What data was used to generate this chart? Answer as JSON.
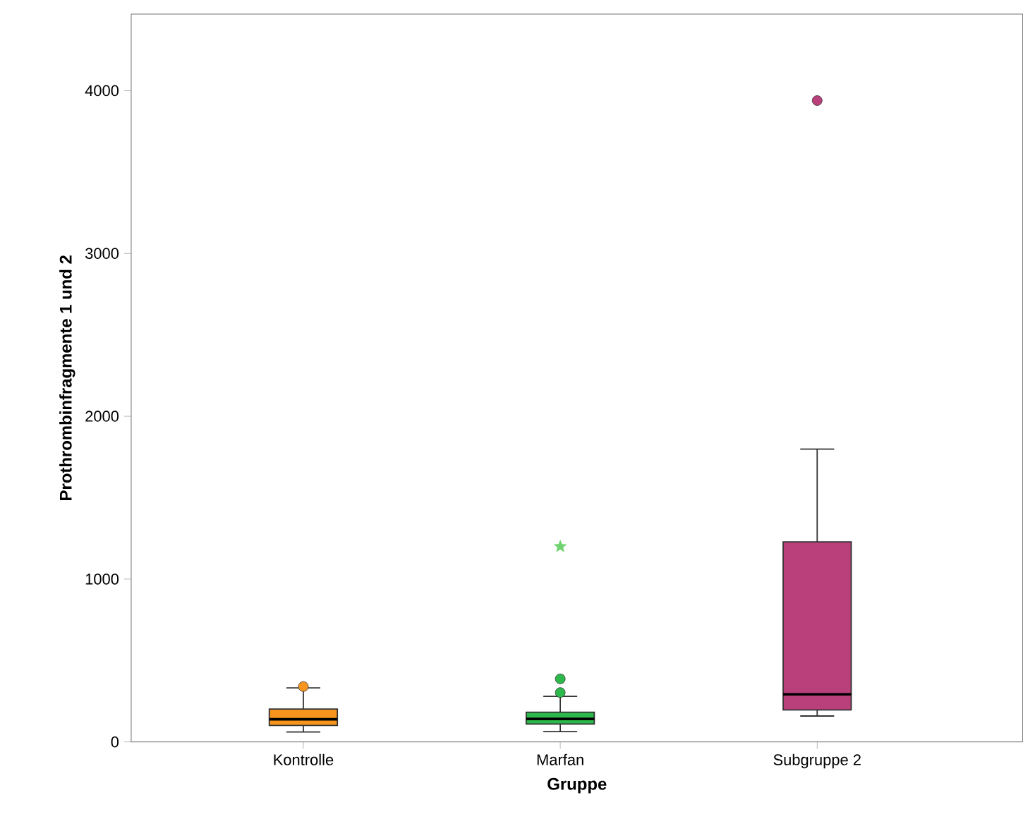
{
  "chart_data": {
    "type": "box",
    "xlabel": "Gruppe",
    "ylabel": "Prothrombinfragmente 1 und 2",
    "categories": [
      "Kontrolle",
      "Marfan",
      "Subgruppe 2"
    ],
    "ylim": [
      0,
      4470
    ],
    "yticks": [
      0,
      1000,
      2000,
      3000,
      4000
    ],
    "grid": false,
    "series": [
      {
        "color": "#f7941d",
        "boxes": [
          {
            "low": 61,
            "q1": 101,
            "median": 139,
            "q3": 202,
            "high": 332,
            "outliers": [
              340
            ]
          },
          null,
          null
        ]
      },
      {
        "color": "#2db84b",
        "boxes": [
          null,
          {
            "low": 63,
            "q1": 110,
            "median": 141,
            "q3": 182,
            "high": 280,
            "outliers": [
              303,
              387
            ]
          },
          null
        ]
      },
      {
        "color": "#b9407b",
        "boxes": [
          null,
          null,
          {
            "low": 159,
            "q1": 196,
            "median": 292,
            "q3": 1229,
            "high": 1798,
            "outliers": [
              3939
            ]
          }
        ]
      },
      {
        "type": "scatter",
        "marker": "star",
        "color": "#6fd36f",
        "x": [
          "Marfan"
        ],
        "values": [
          1200
        ]
      }
    ]
  }
}
